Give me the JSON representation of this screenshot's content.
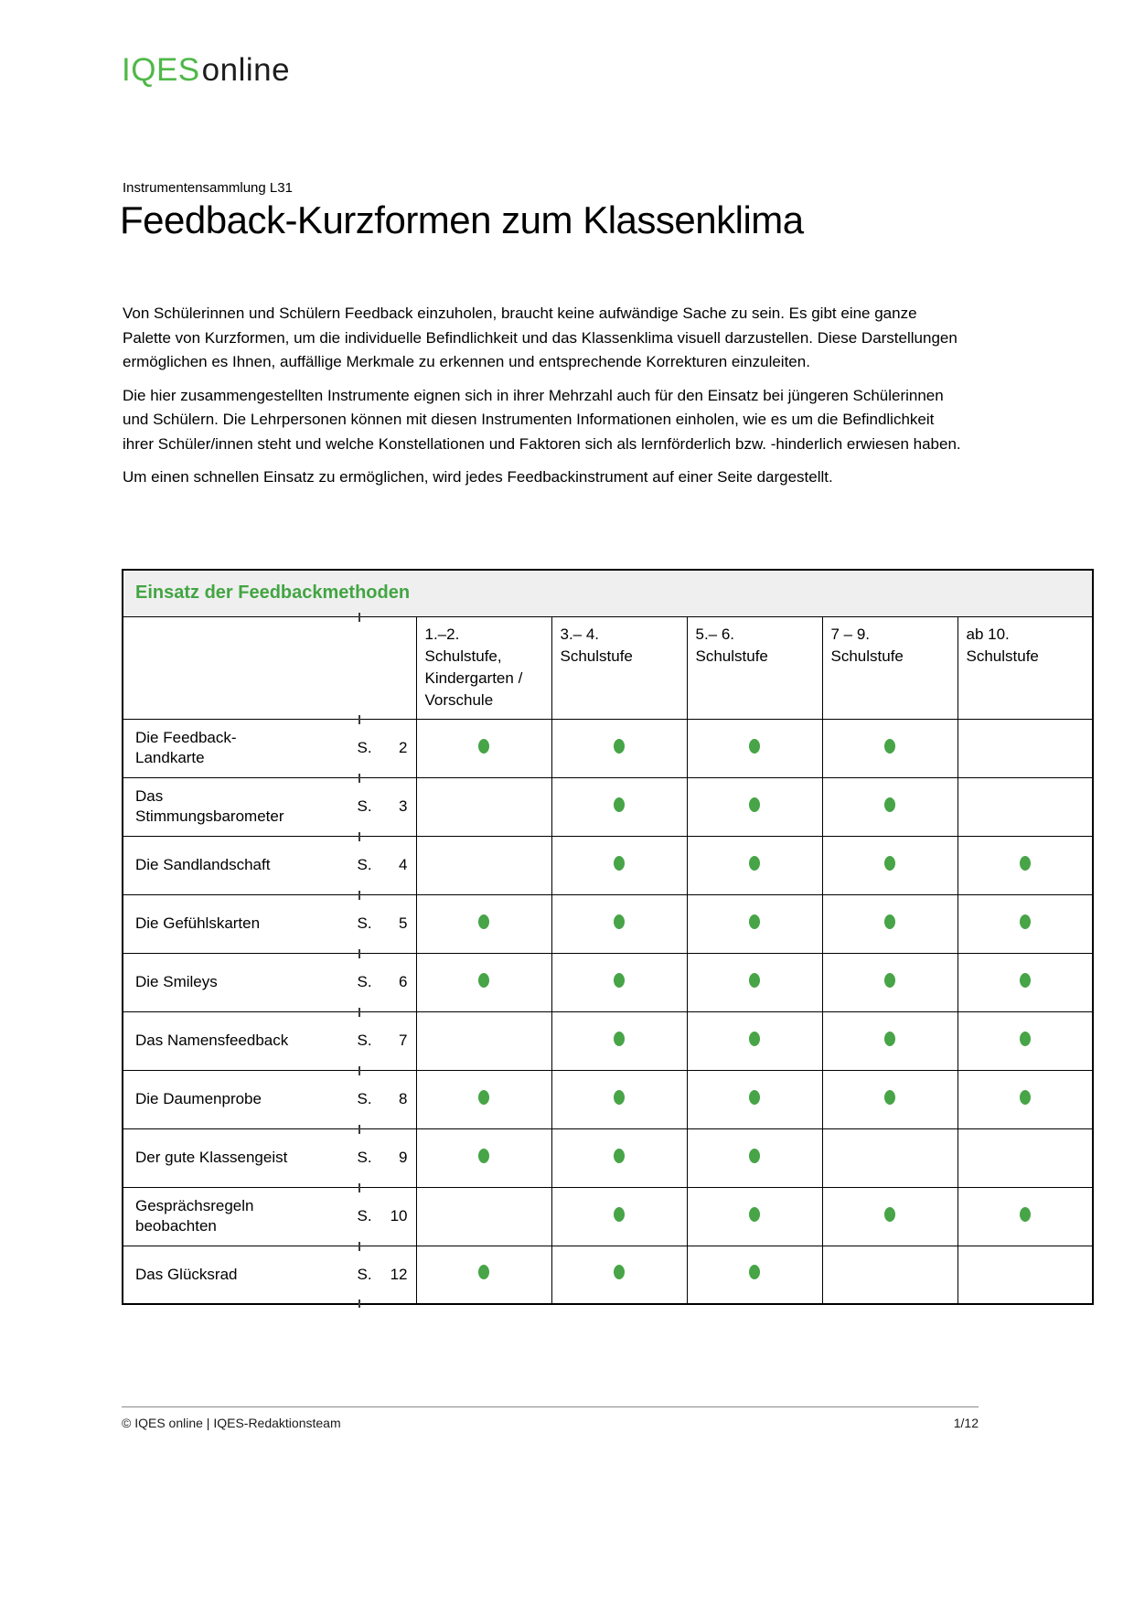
{
  "logo": {
    "brand": "IQES",
    "suffix": "online"
  },
  "kicker": "Instrumentensammlung L31",
  "title": "Feedback-Kurzformen zum Klassenklima",
  "intro": {
    "paragraphs": [
      "Von Schülerinnen und Schülern Feedback einzuholen, braucht keine aufwändige Sache zu sein. Es gibt eine ganze Palette von Kurzformen, um die individuelle Befindlichkeit und das Klassenklima visuell darzustellen. Diese Darstellungen ermöglichen es Ihnen, auffällige Merkmale zu erkennen und entsprechende Korrekturen einzuleiten.",
      "Die hier zusammengestellten Instrumente eignen sich in ihrer Mehrzahl auch für den Einsatz bei jüngeren Schülerinnen und Schülern. Die Lehrpersonen können mit diesen Instrumenten Informationen einholen, wie es um die Befindlichkeit ihrer Schüler/innen steht und welche Konstellationen und Faktoren sich als lernförderlich bzw. -hinderlich erwiesen haben.",
      "Um einen schnellen Einsatz zu ermöglichen, wird jedes Feedbackinstrument auf einer Seite dargestellt."
    ]
  },
  "table": {
    "caption": "Einsatz der Feedbackmethoden",
    "page_prefix": "S.",
    "columns": [
      "1.–2.\nSchulstufe,\nKindergarten /\nVorschule",
      "3.– 4.\nSchulstufe",
      "5.– 6.\nSchulstufe",
      "7 – 9.\nSchulstufe",
      "ab 10.\nSchulstufe"
    ],
    "rows": [
      {
        "name": "Die Feedback-\nLandkarte",
        "page": "2",
        "marks": [
          true,
          true,
          true,
          true,
          false
        ]
      },
      {
        "name": "Das\nStimmungsbarometer",
        "page": "3",
        "marks": [
          false,
          true,
          true,
          true,
          false
        ]
      },
      {
        "name": "Die Sandlandschaft",
        "page": "4",
        "marks": [
          false,
          true,
          true,
          true,
          true
        ]
      },
      {
        "name": "Die Gefühlskarten",
        "page": "5",
        "marks": [
          true,
          true,
          true,
          true,
          true
        ]
      },
      {
        "name": "Die Smileys",
        "page": "6",
        "marks": [
          true,
          true,
          true,
          true,
          true
        ]
      },
      {
        "name": "Das Namensfeedback",
        "page": "7",
        "marks": [
          false,
          true,
          true,
          true,
          true
        ]
      },
      {
        "name": "Die Daumenprobe",
        "page": "8",
        "marks": [
          true,
          true,
          true,
          true,
          true
        ]
      },
      {
        "name": "Der gute Klassengeist",
        "page": "9",
        "marks": [
          true,
          true,
          true,
          false,
          false
        ]
      },
      {
        "name": "Gesprächsregeln\nbeobachten",
        "page": "10",
        "marks": [
          false,
          true,
          true,
          true,
          true
        ]
      },
      {
        "name": "Das Glücksrad",
        "page": "12",
        "marks": [
          true,
          true,
          true,
          false,
          false
        ]
      }
    ]
  },
  "footer": {
    "left": "© IQES online  |  IQES-Redaktionsteam",
    "right": "1/12"
  },
  "colors": {
    "brand_green": "#4fb848",
    "heading_green": "#42a542",
    "dot_green": "#47a447"
  }
}
